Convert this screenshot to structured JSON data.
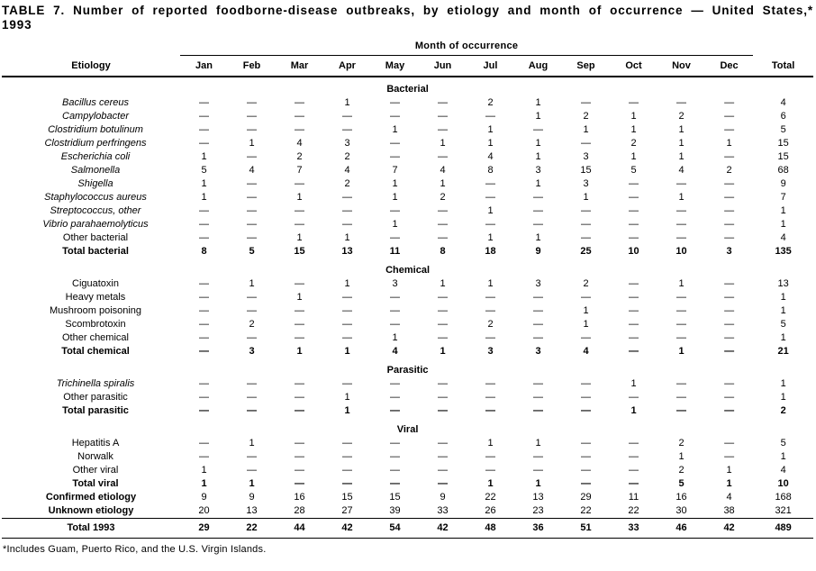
{
  "title": "TABLE 7. Number of reported foodborne-disease outbreaks, by etiology and month of occurrence — United States,* 1993",
  "colors": {
    "text": "#000000",
    "background": "#ffffff",
    "rule": "#000000"
  },
  "footnote": "*Includes Guam, Puerto Rico, and the U.S. Virgin Islands.",
  "table": {
    "month_group_header": "Month of occurrence",
    "etiology_header": "Etiology",
    "total_header": "Total",
    "dash": "—",
    "months": [
      "Jan",
      "Feb",
      "Mar",
      "Apr",
      "May",
      "Jun",
      "Jul",
      "Aug",
      "Sep",
      "Oct",
      "Nov",
      "Dec"
    ],
    "sections": [
      {
        "name": "Bacterial",
        "rows": [
          {
            "label": "Bacillus cereus",
            "italic": true,
            "values": [
              "—",
              "—",
              "—",
              "1",
              "—",
              "—",
              "2",
              "1",
              "—",
              "—",
              "—",
              "—"
            ],
            "total": "4"
          },
          {
            "label": "Campylobacter",
            "italic": true,
            "values": [
              "—",
              "—",
              "—",
              "—",
              "—",
              "—",
              "—",
              "1",
              "2",
              "1",
              "2",
              "—"
            ],
            "total": "6"
          },
          {
            "label": "Clostridium botulinum",
            "italic": true,
            "values": [
              "—",
              "—",
              "—",
              "—",
              "1",
              "—",
              "1",
              "—",
              "1",
              "1",
              "1",
              "—"
            ],
            "total": "5"
          },
          {
            "label": "Clostridium perfringens",
            "italic": true,
            "values": [
              "—",
              "1",
              "4",
              "3",
              "—",
              "1",
              "1",
              "1",
              "—",
              "2",
              "1",
              "1"
            ],
            "total": "15"
          },
          {
            "label": "Escherichia coli",
            "italic": true,
            "values": [
              "1",
              "—",
              "2",
              "2",
              "—",
              "—",
              "4",
              "1",
              "3",
              "1",
              "1",
              "—"
            ],
            "total": "15"
          },
          {
            "label": "Salmonella",
            "italic": true,
            "values": [
              "5",
              "4",
              "7",
              "4",
              "7",
              "4",
              "8",
              "3",
              "15",
              "5",
              "4",
              "2"
            ],
            "total": "68"
          },
          {
            "label": "Shigella",
            "italic": true,
            "values": [
              "1",
              "—",
              "—",
              "2",
              "1",
              "1",
              "—",
              "1",
              "3",
              "—",
              "—",
              "—"
            ],
            "total": "9"
          },
          {
            "label": "Staphylococcus aureus",
            "italic": true,
            "values": [
              "1",
              "—",
              "1",
              "—",
              "1",
              "2",
              "—",
              "—",
              "1",
              "—",
              "1",
              "—"
            ],
            "total": "7"
          },
          {
            "label": "Streptococcus, other",
            "italic": true,
            "values": [
              "—",
              "—",
              "—",
              "—",
              "—",
              "—",
              "1",
              "—",
              "—",
              "—",
              "—",
              "—"
            ],
            "total": "1"
          },
          {
            "label": "Vibrio parahaemolyticus",
            "italic": true,
            "values": [
              "—",
              "—",
              "—",
              "—",
              "1",
              "—",
              "—",
              "—",
              "—",
              "—",
              "—",
              "—"
            ],
            "total": "1"
          },
          {
            "label": "Other bacterial",
            "italic": false,
            "values": [
              "—",
              "—",
              "1",
              "1",
              "—",
              "—",
              "1",
              "1",
              "—",
              "—",
              "—",
              "—"
            ],
            "total": "4"
          }
        ],
        "total_row": {
          "label": "Total bacterial",
          "italic": false,
          "values": [
            "8",
            "5",
            "15",
            "13",
            "11",
            "8",
            "18",
            "9",
            "25",
            "10",
            "10",
            "3"
          ],
          "total": "135"
        }
      },
      {
        "name": "Chemical",
        "rows": [
          {
            "label": "Ciguatoxin",
            "italic": false,
            "values": [
              "—",
              "1",
              "—",
              "1",
              "3",
              "1",
              "1",
              "3",
              "2",
              "—",
              "1",
              "—"
            ],
            "total": "13"
          },
          {
            "label": "Heavy metals",
            "italic": false,
            "values": [
              "—",
              "—",
              "1",
              "—",
              "—",
              "—",
              "—",
              "—",
              "—",
              "—",
              "—",
              "—"
            ],
            "total": "1"
          },
          {
            "label": "Mushroom poisoning",
            "italic": false,
            "values": [
              "—",
              "—",
              "—",
              "—",
              "—",
              "—",
              "—",
              "—",
              "1",
              "—",
              "—",
              "—"
            ],
            "total": "1"
          },
          {
            "label": "Scombrotoxin",
            "italic": false,
            "values": [
              "—",
              "2",
              "—",
              "—",
              "—",
              "—",
              "2",
              "—",
              "1",
              "—",
              "—",
              "—"
            ],
            "total": "5"
          },
          {
            "label": "Other chemical",
            "italic": false,
            "values": [
              "—",
              "—",
              "—",
              "—",
              "1",
              "—",
              "—",
              "—",
              "—",
              "—",
              "—",
              "—"
            ],
            "total": "1"
          }
        ],
        "total_row": {
          "label": "Total chemical",
          "italic": false,
          "values": [
            "—",
            "3",
            "1",
            "1",
            "4",
            "1",
            "3",
            "3",
            "4",
            "—",
            "1",
            "—"
          ],
          "total": "21"
        }
      },
      {
        "name": "Parasitic",
        "rows": [
          {
            "label": "Trichinella spiralis",
            "italic": true,
            "values": [
              "—",
              "—",
              "—",
              "—",
              "—",
              "—",
              "—",
              "—",
              "—",
              "1",
              "—",
              "—"
            ],
            "total": "1"
          },
          {
            "label": "Other parasitic",
            "italic": false,
            "values": [
              "—",
              "—",
              "—",
              "1",
              "—",
              "—",
              "—",
              "—",
              "—",
              "—",
              "—",
              "—"
            ],
            "total": "1"
          }
        ],
        "total_row": {
          "label": "Total parasitic",
          "italic": false,
          "values": [
            "—",
            "—",
            "—",
            "1",
            "—",
            "—",
            "—",
            "—",
            "—",
            "1",
            "—",
            "—"
          ],
          "total": "2"
        }
      },
      {
        "name": "Viral",
        "rows": [
          {
            "label": "Hepatitis A",
            "italic": false,
            "values": [
              "—",
              "1",
              "—",
              "—",
              "—",
              "—",
              "1",
              "1",
              "—",
              "—",
              "2",
              "—"
            ],
            "total": "5"
          },
          {
            "label": "Norwalk",
            "italic": false,
            "values": [
              "—",
              "—",
              "—",
              "—",
              "—",
              "—",
              "—",
              "—",
              "—",
              "—",
              "1",
              "—"
            ],
            "total": "1"
          },
          {
            "label": "Other viral",
            "italic": false,
            "values": [
              "1",
              "—",
              "—",
              "—",
              "—",
              "—",
              "—",
              "—",
              "—",
              "—",
              "2",
              "1"
            ],
            "total": "4"
          }
        ],
        "total_row": {
          "label": "Total viral",
          "italic": false,
          "values": [
            "1",
            "1",
            "—",
            "—",
            "—",
            "—",
            "1",
            "1",
            "—",
            "—",
            "5",
            "1"
          ],
          "total": "10"
        }
      }
    ],
    "summary_rows": [
      {
        "label": "Confirmed etiology",
        "italic": false,
        "values": [
          "9",
          "9",
          "16",
          "15",
          "15",
          "9",
          "22",
          "13",
          "29",
          "11",
          "16",
          "4"
        ],
        "total": "168"
      },
      {
        "label": "Unknown etiology",
        "italic": false,
        "values": [
          "20",
          "13",
          "28",
          "27",
          "39",
          "33",
          "26",
          "23",
          "22",
          "22",
          "30",
          "38"
        ],
        "total": "321"
      }
    ],
    "grand_total_row": {
      "label": "Total 1993",
      "italic": false,
      "values": [
        "29",
        "22",
        "44",
        "42",
        "54",
        "42",
        "48",
        "36",
        "51",
        "33",
        "46",
        "42"
      ],
      "total": "489"
    }
  }
}
